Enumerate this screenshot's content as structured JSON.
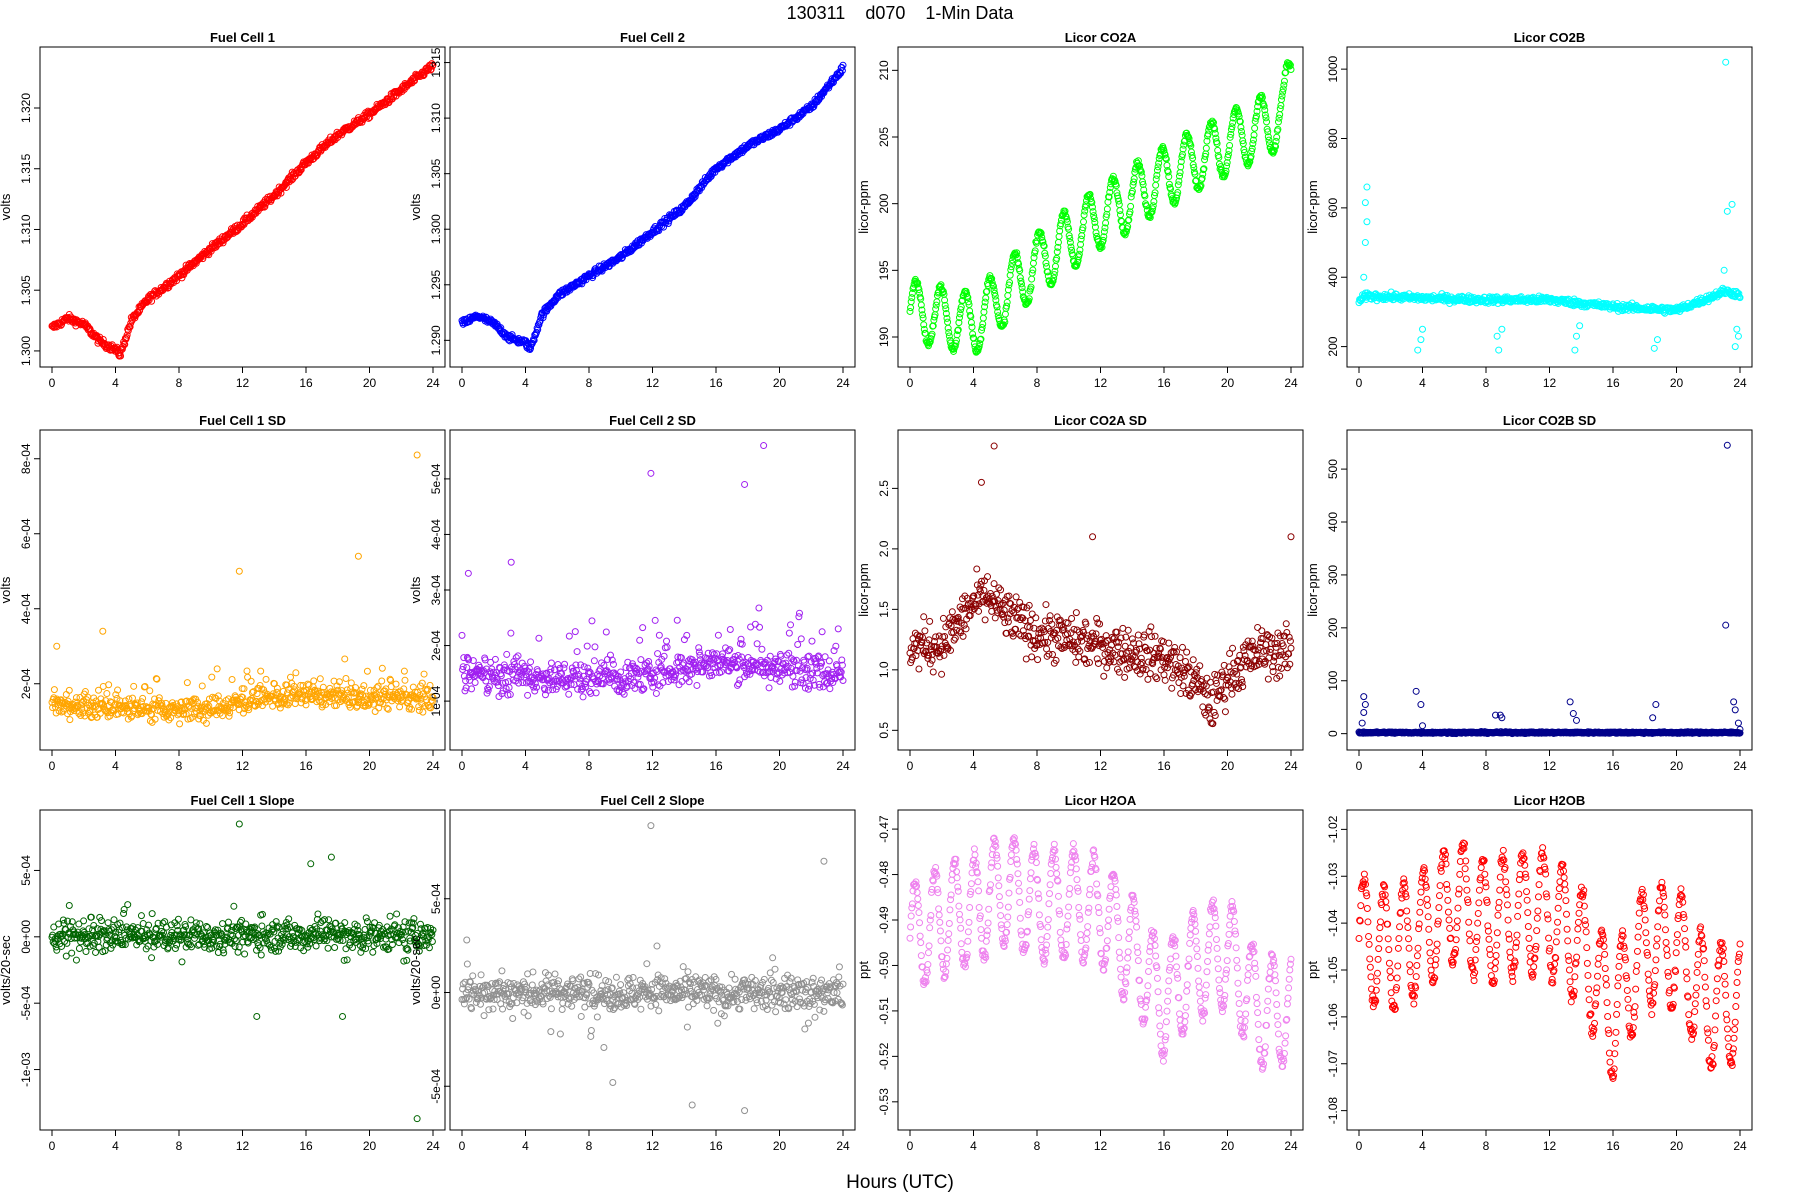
{
  "figure": {
    "title": "130311    d070    1-Min Data",
    "xlabel": "Hours (UTC)"
  },
  "chart_data": [
    {
      "type": "scatter",
      "title": "Fuel Cell 1",
      "ylabel": "volts",
      "color": "#ff0000",
      "xlim": [
        0,
        24
      ],
      "ylim": [
        1.2995,
        1.3242
      ],
      "xticks": [
        0,
        4,
        8,
        12,
        16,
        20,
        24
      ],
      "xtick_labels": [
        "0",
        "4",
        "8",
        "12",
        "16",
        "20",
        "24"
      ],
      "yticks": [
        1.3,
        1.305,
        1.31,
        1.315,
        1.32
      ],
      "ytick_labels": [
        "1.300",
        "1.305",
        "1.310",
        "1.315",
        "1.320"
      ],
      "series": [
        {
          "x": [
            0,
            1,
            2,
            3,
            4,
            4.3,
            5,
            6,
            8,
            10,
            12,
            14,
            16,
            18,
            20,
            22,
            24
          ],
          "y": [
            1.3019,
            1.3027,
            1.3022,
            1.3008,
            1.3001,
            1.2997,
            1.3025,
            1.3042,
            1.3062,
            1.3084,
            1.3105,
            1.3128,
            1.3155,
            1.3178,
            1.3195,
            1.3215,
            1.3235
          ]
        }
      ],
      "spread": 0.0003
    },
    {
      "type": "scatter",
      "title": "Fuel Cell 2",
      "ylabel": "volts",
      "color": "#0000ff",
      "xlim": [
        0,
        24
      ],
      "ylim": [
        1.2885,
        1.3155
      ],
      "xticks": [
        0,
        4,
        8,
        12,
        16,
        20,
        24
      ],
      "xtick_labels": [
        "0",
        "4",
        "8",
        "12",
        "16",
        "20",
        "24"
      ],
      "yticks": [
        1.29,
        1.295,
        1.3,
        1.305,
        1.31,
        1.315
      ],
      "ytick_labels": [
        "1.290",
        "1.295",
        "1.300",
        "1.305",
        "1.310",
        "1.315"
      ],
      "series": [
        {
          "x": [
            0,
            1,
            2,
            3,
            4,
            4.3,
            5,
            6,
            8,
            10,
            12,
            14,
            16,
            18,
            20,
            22,
            24
          ],
          "y": [
            1.2915,
            1.2922,
            1.2915,
            1.2902,
            1.2898,
            1.2892,
            1.2922,
            1.294,
            1.2958,
            1.2975,
            1.2998,
            1.302,
            1.3055,
            1.3075,
            1.309,
            1.311,
            1.3145
          ]
        }
      ],
      "spread": 0.0003
    },
    {
      "type": "scatter",
      "title": "Licor CO2A",
      "ylabel": "licor-ppm",
      "color": "#00ff00",
      "xlim": [
        0,
        24
      ],
      "ylim": [
        188.5,
        211
      ],
      "xticks": [
        0,
        4,
        8,
        12,
        16,
        20,
        24
      ],
      "xtick_labels": [
        "0",
        "4",
        "8",
        "12",
        "16",
        "20",
        "24"
      ],
      "yticks": [
        190,
        195,
        200,
        205,
        210
      ],
      "ytick_labels": [
        "190",
        "195",
        "200",
        "205",
        "210"
      ],
      "series": [
        {
          "x": [
            0,
            4,
            8,
            12,
            16,
            20,
            23.5,
            24
          ],
          "y": [
            192,
            191,
            195.5,
            199,
            202,
            204.5,
            206.5,
            210
          ]
        }
      ],
      "wave": {
        "amp": 2.3,
        "period": 1.55
      },
      "spread": 0.2
    },
    {
      "type": "scatter",
      "title": "Licor CO2B",
      "ylabel": "licor-ppm",
      "color": "#00ffff",
      "xlim": [
        0,
        24
      ],
      "ylim": [
        170,
        1035
      ],
      "xticks": [
        0,
        4,
        8,
        12,
        16,
        20,
        24
      ],
      "xtick_labels": [
        "0",
        "4",
        "8",
        "12",
        "16",
        "20",
        "24"
      ],
      "yticks": [
        200,
        400,
        600,
        800,
        1000
      ],
      "ytick_labels": [
        "200",
        "400",
        "600",
        "800",
        "1000"
      ],
      "series": [
        {
          "x": [
            0,
            0.4,
            1,
            4,
            8,
            12,
            16,
            20,
            22,
            23,
            24
          ],
          "y": [
            330,
            345,
            345,
            340,
            335,
            335,
            315,
            305,
            340,
            360,
            350
          ]
        }
      ],
      "spread": 10,
      "outliers": [
        [
          0.3,
          400
        ],
        [
          0.4,
          500
        ],
        [
          0.5,
          560
        ],
        [
          0.4,
          615
        ],
        [
          0.5,
          660
        ],
        [
          3.7,
          190
        ],
        [
          3.9,
          220
        ],
        [
          4.0,
          250
        ],
        [
          8.8,
          190
        ],
        [
          8.7,
          230
        ],
        [
          9.0,
          250
        ],
        [
          13.6,
          190
        ],
        [
          13.7,
          230
        ],
        [
          13.9,
          260
        ],
        [
          18.6,
          195
        ],
        [
          18.8,
          220
        ],
        [
          23.1,
          1020
        ],
        [
          23.2,
          590
        ],
        [
          23.5,
          610
        ],
        [
          23.8,
          250
        ],
        [
          23.9,
          230
        ],
        [
          23.7,
          200
        ],
        [
          23.0,
          420
        ]
      ]
    },
    {
      "type": "scatter",
      "title": "Fuel Cell 1 SD",
      "ylabel": "volts",
      "color": "#ffa500",
      "xlim": [
        0,
        24
      ],
      "ylim": [
        5e-05,
        0.00085
      ],
      "xticks": [
        0,
        4,
        8,
        12,
        16,
        20,
        24
      ],
      "xtick_labels": [
        "0",
        "4",
        "8",
        "12",
        "16",
        "20",
        "24"
      ],
      "yticks": [
        0.0002,
        0.0004,
        0.0006,
        0.0008
      ],
      "ytick_labels": [
        "2e-04",
        "4e-04",
        "6e-04",
        "8e-04"
      ],
      "series": [
        {
          "x": [
            0,
            6,
            10,
            12,
            16,
            20,
            24
          ],
          "y": [
            0.00014,
            0.00013,
            0.00013,
            0.00015,
            0.00017,
            0.00016,
            0.00016
          ]
        }
      ],
      "spread": 3e-05,
      "tail": 9e-05,
      "outliers": [
        [
          23,
          0.00081
        ],
        [
          11.8,
          0.0005
        ],
        [
          19.3,
          0.00054
        ],
        [
          0.3,
          0.0003
        ],
        [
          3.2,
          0.00034
        ]
      ]
    },
    {
      "type": "scatter",
      "title": "Fuel Cell 2 SD",
      "ylabel": "volts",
      "color": "#a020f0",
      "xlim": [
        0,
        24
      ],
      "ylim": [
        3e-05,
        0.00057
      ],
      "xticks": [
        0,
        4,
        8,
        12,
        16,
        20,
        24
      ],
      "xtick_labels": [
        "0",
        "4",
        "8",
        "12",
        "16",
        "20",
        "24"
      ],
      "yticks": [
        0.0001,
        0.0002,
        0.0003,
        0.0004,
        0.0005
      ],
      "ytick_labels": [
        "1e-04",
        "2e-04",
        "3e-04",
        "4e-04",
        "5e-04"
      ],
      "series": [
        {
          "x": [
            0,
            6,
            10,
            12,
            16,
            20,
            24
          ],
          "y": [
            0.00015,
            0.00014,
            0.00014,
            0.00015,
            0.00017,
            0.00016,
            0.00015
          ]
        }
      ],
      "spread": 3e-05,
      "tail": 0.0001,
      "outliers": [
        [
          19,
          0.00056
        ],
        [
          11.9,
          0.00051
        ],
        [
          17.8,
          0.00049
        ],
        [
          0.4,
          0.00033
        ],
        [
          3.1,
          0.00035
        ]
      ]
    },
    {
      "type": "scatter",
      "title": "Licor CO2A SD",
      "ylabel": "licor-ppm",
      "color": "#8b0000",
      "xlim": [
        0,
        24
      ],
      "ylim": [
        0.42,
        2.9
      ],
      "xticks": [
        0,
        4,
        8,
        12,
        16,
        20,
        24
      ],
      "xtick_labels": [
        "0",
        "4",
        "8",
        "12",
        "16",
        "20",
        "24"
      ],
      "yticks": [
        0.5,
        1.0,
        1.5,
        2.0,
        2.5
      ],
      "ytick_labels": [
        "0.5",
        "1.0",
        "1.5",
        "2.0",
        "2.5"
      ],
      "series": [
        {
          "x": [
            0,
            2,
            4,
            5,
            6,
            8,
            12,
            16,
            18,
            19,
            20,
            22,
            24
          ],
          "y": [
            1.2,
            1.2,
            1.55,
            1.6,
            1.45,
            1.3,
            1.2,
            1.1,
            0.9,
            0.7,
            0.95,
            1.15,
            1.15
          ]
        }
      ],
      "spread": 0.2,
      "outliers": [
        [
          5.3,
          2.85
        ],
        [
          4.5,
          2.55
        ],
        [
          24,
          2.1
        ],
        [
          11.5,
          2.1
        ]
      ]
    },
    {
      "type": "scatter",
      "title": "Licor CO2B SD",
      "ylabel": "licor-ppm",
      "color": "#00008b",
      "xlim": [
        0,
        24
      ],
      "ylim": [
        -12,
        555
      ],
      "xticks": [
        0,
        4,
        8,
        12,
        16,
        20,
        24
      ],
      "xtick_labels": [
        "0",
        "4",
        "8",
        "12",
        "16",
        "20",
        "24"
      ],
      "yticks": [
        0,
        100,
        200,
        300,
        400,
        500
      ],
      "ytick_labels": [
        "0",
        "100",
        "200",
        "300",
        "400",
        "500"
      ],
      "series": [
        {
          "x": [
            0,
            24
          ],
          "y": [
            2,
            2
          ]
        }
      ],
      "spread": 1.5,
      "outliers": [
        [
          23.2,
          545
        ],
        [
          23.1,
          205
        ],
        [
          0.3,
          70
        ],
        [
          0.4,
          55
        ],
        [
          0.3,
          40
        ],
        [
          0.2,
          20
        ],
        [
          3.6,
          80
        ],
        [
          3.9,
          55
        ],
        [
          4.0,
          15
        ],
        [
          8.6,
          35
        ],
        [
          8.9,
          35
        ],
        [
          9.0,
          30
        ],
        [
          13.3,
          60
        ],
        [
          13.5,
          38
        ],
        [
          13.7,
          25
        ],
        [
          18.7,
          55
        ],
        [
          18.5,
          30
        ],
        [
          23.6,
          60
        ],
        [
          23.7,
          45
        ],
        [
          23.9,
          20
        ],
        [
          24,
          8
        ]
      ]
    },
    {
      "type": "scatter",
      "title": "Fuel Cell 1 Slope",
      "ylabel": "volts/20-sec",
      "color": "#006400",
      "xlim": [
        0,
        24
      ],
      "ylim": [
        -0.00138,
        0.00088
      ],
      "xticks": [
        0,
        4,
        8,
        12,
        16,
        20,
        24
      ],
      "xtick_labels": [
        "0",
        "4",
        "8",
        "12",
        "16",
        "20",
        "24"
      ],
      "yticks": [
        -0.001,
        -0.0005,
        0,
        0.0005
      ],
      "ytick_labels": [
        "-1e-03",
        "-5e-04",
        "0e+00",
        "5e-04"
      ],
      "series": [
        {
          "x": [
            0,
            24
          ],
          "y": [
            1e-05,
            1e-05
          ]
        }
      ],
      "spread": 0.00011,
      "tail": 0.00022,
      "outliers": [
        [
          11.8,
          0.00085
        ],
        [
          23,
          -0.00137
        ],
        [
          17.6,
          0.0006
        ],
        [
          16.3,
          0.00055
        ],
        [
          18.3,
          -0.0006
        ],
        [
          12.9,
          -0.0006
        ]
      ]
    },
    {
      "type": "scatter",
      "title": "Fuel Cell 2 Slope",
      "ylabel": "volts/20-sec",
      "color": "#909090",
      "xlim": [
        0,
        24
      ],
      "ylim": [
        -0.00068,
        0.00092
      ],
      "xticks": [
        0,
        4,
        8,
        12,
        16,
        20,
        24
      ],
      "xtick_labels": [
        "0",
        "4",
        "8",
        "12",
        "16",
        "20",
        "24"
      ],
      "yticks": [
        -0.0005,
        0,
        0.0005
      ],
      "ytick_labels": [
        "-5e-04",
        "0e+00",
        "5e-04"
      ],
      "series": [
        {
          "x": [
            0,
            24
          ],
          "y": [
            0,
            0
          ]
        }
      ],
      "spread": 9e-05,
      "tail": 0.0002,
      "outliers": [
        [
          11.9,
          0.00089
        ],
        [
          22.8,
          0.0007
        ],
        [
          17.8,
          -0.00063
        ],
        [
          9.5,
          -0.00048
        ],
        [
          0.3,
          0.00028
        ],
        [
          14.5,
          -0.0006
        ]
      ]
    },
    {
      "type": "scatter",
      "title": "Licor H2OA",
      "ylabel": "ppt",
      "color": "#ee82ee",
      "xlim": [
        0,
        24
      ],
      "ylim": [
        -0.534,
        -0.468
      ],
      "xticks": [
        0,
        4,
        8,
        12,
        16,
        20,
        24
      ],
      "xtick_labels": [
        "0",
        "4",
        "8",
        "12",
        "16",
        "20",
        "24"
      ],
      "yticks": [
        -0.53,
        -0.52,
        -0.51,
        -0.5,
        -0.49,
        -0.48,
        -0.47
      ],
      "ytick_labels": [
        "-0.53",
        "-0.52",
        "-0.51",
        "-0.50",
        "-0.49",
        "-0.48",
        "-0.47"
      ],
      "series": [
        {
          "x": [
            0,
            2,
            4,
            6,
            8,
            10,
            12,
            14,
            16,
            18,
            20,
            22,
            24
          ],
          "y": [
            -0.494,
            -0.49,
            -0.488,
            -0.483,
            -0.487,
            -0.486,
            -0.488,
            -0.497,
            -0.508,
            -0.5,
            -0.497,
            -0.51,
            -0.51
          ]
        }
      ],
      "wave": {
        "amp": 0.012,
        "period": 1.25
      },
      "spread": 0.0015
    },
    {
      "type": "scatter",
      "title": "Licor H2OB",
      "ylabel": "ppt",
      "color": "#ff0000",
      "xlim": [
        0,
        24
      ],
      "ylim": [
        -1.082,
        -1.018
      ],
      "xticks": [
        0,
        4,
        8,
        12,
        16,
        20,
        24
      ],
      "xtick_labels": [
        "0",
        "4",
        "8",
        "12",
        "16",
        "20",
        "24"
      ],
      "yticks": [
        -1.08,
        -1.07,
        -1.06,
        -1.05,
        -1.04,
        -1.03,
        -1.02
      ],
      "ytick_labels": [
        "-1.08",
        "-1.07",
        "-1.06",
        "-1.05",
        "-1.04",
        "-1.03",
        "-1.02"
      ],
      "series": [
        {
          "x": [
            0,
            2,
            4,
            6,
            8,
            10,
            12,
            14,
            16,
            18,
            20,
            22,
            24
          ],
          "y": [
            -1.043,
            -1.046,
            -1.042,
            -1.035,
            -1.04,
            -1.038,
            -1.038,
            -1.045,
            -1.06,
            -1.045,
            -1.045,
            -1.058,
            -1.057
          ]
        }
      ],
      "wave": {
        "amp": 0.013,
        "period": 1.25
      },
      "spread": 0.0015
    }
  ]
}
